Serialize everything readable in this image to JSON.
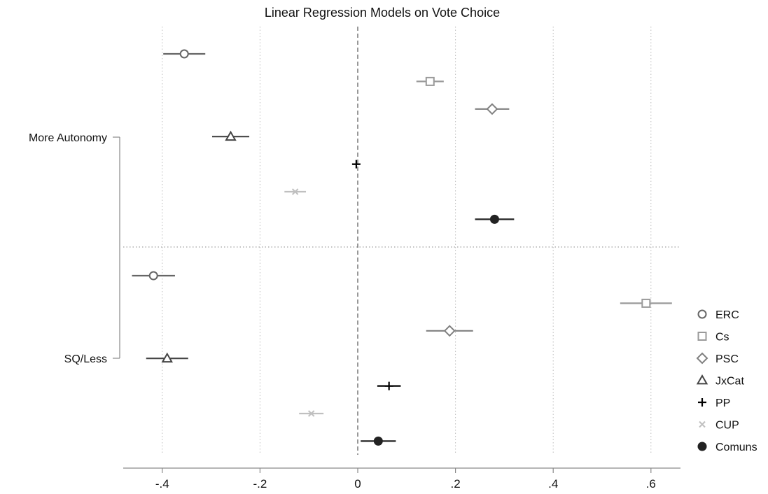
{
  "chart_data": {
    "type": "scatter",
    "title": "Linear Regression Models on Vote Choice",
    "xlabel": "",
    "ylabel": "",
    "xlim": [
      -0.5,
      0.66
    ],
    "x_ticks": [
      -0.4,
      -0.2,
      0,
      0.2,
      0.4,
      0.6
    ],
    "x_tick_labels": [
      "-.4",
      "-.2",
      "0",
      ".2",
      ".4",
      ".6"
    ],
    "groups": [
      "More Autonomy",
      "SQ/Less"
    ],
    "reference_line": 0,
    "grid": true,
    "legend_position": "right",
    "series": [
      {
        "name": "ERC",
        "marker": "circle-open",
        "color": "#666666",
        "values": [
          {
            "group": "More Autonomy",
            "estimate": -0.355,
            "lower": -0.398,
            "upper": -0.312
          },
          {
            "group": "SQ/Less",
            "estimate": -0.418,
            "lower": -0.462,
            "upper": -0.374
          }
        ]
      },
      {
        "name": "Cs",
        "marker": "square-open",
        "color": "#9a9a9a",
        "values": [
          {
            "group": "More Autonomy",
            "estimate": 0.148,
            "lower": 0.12,
            "upper": 0.176
          },
          {
            "group": "SQ/Less",
            "estimate": 0.59,
            "lower": 0.537,
            "upper": 0.643
          }
        ]
      },
      {
        "name": "PSC",
        "marker": "diamond-open",
        "color": "#808080",
        "values": [
          {
            "group": "More Autonomy",
            "estimate": 0.275,
            "lower": 0.24,
            "upper": 0.31
          },
          {
            "group": "SQ/Less",
            "estimate": 0.188,
            "lower": 0.14,
            "upper": 0.236
          }
        ]
      },
      {
        "name": "JxCat",
        "marker": "triangle-open",
        "color": "#444444",
        "values": [
          {
            "group": "More Autonomy",
            "estimate": -0.26,
            "lower": -0.298,
            "upper": -0.222
          },
          {
            "group": "SQ/Less",
            "estimate": -0.39,
            "lower": -0.433,
            "upper": -0.347
          }
        ]
      },
      {
        "name": "PP",
        "marker": "plus",
        "color": "#000000",
        "values": [
          {
            "group": "More Autonomy",
            "estimate": -0.003,
            "lower": -0.01,
            "upper": 0.004
          },
          {
            "group": "SQ/Less",
            "estimate": 0.064,
            "lower": 0.04,
            "upper": 0.088
          }
        ]
      },
      {
        "name": "CUP",
        "marker": "x",
        "color": "#c0c0c0",
        "values": [
          {
            "group": "More Autonomy",
            "estimate": -0.128,
            "lower": -0.15,
            "upper": -0.106
          },
          {
            "group": "SQ/Less",
            "estimate": -0.095,
            "lower": -0.12,
            "upper": -0.07
          }
        ]
      },
      {
        "name": "Comuns",
        "marker": "circle-filled",
        "color": "#222222",
        "values": [
          {
            "group": "More Autonomy",
            "estimate": 0.28,
            "lower": 0.24,
            "upper": 0.32
          },
          {
            "group": "SQ/Less",
            "estimate": 0.042,
            "lower": 0.006,
            "upper": 0.078
          }
        ]
      }
    ]
  }
}
